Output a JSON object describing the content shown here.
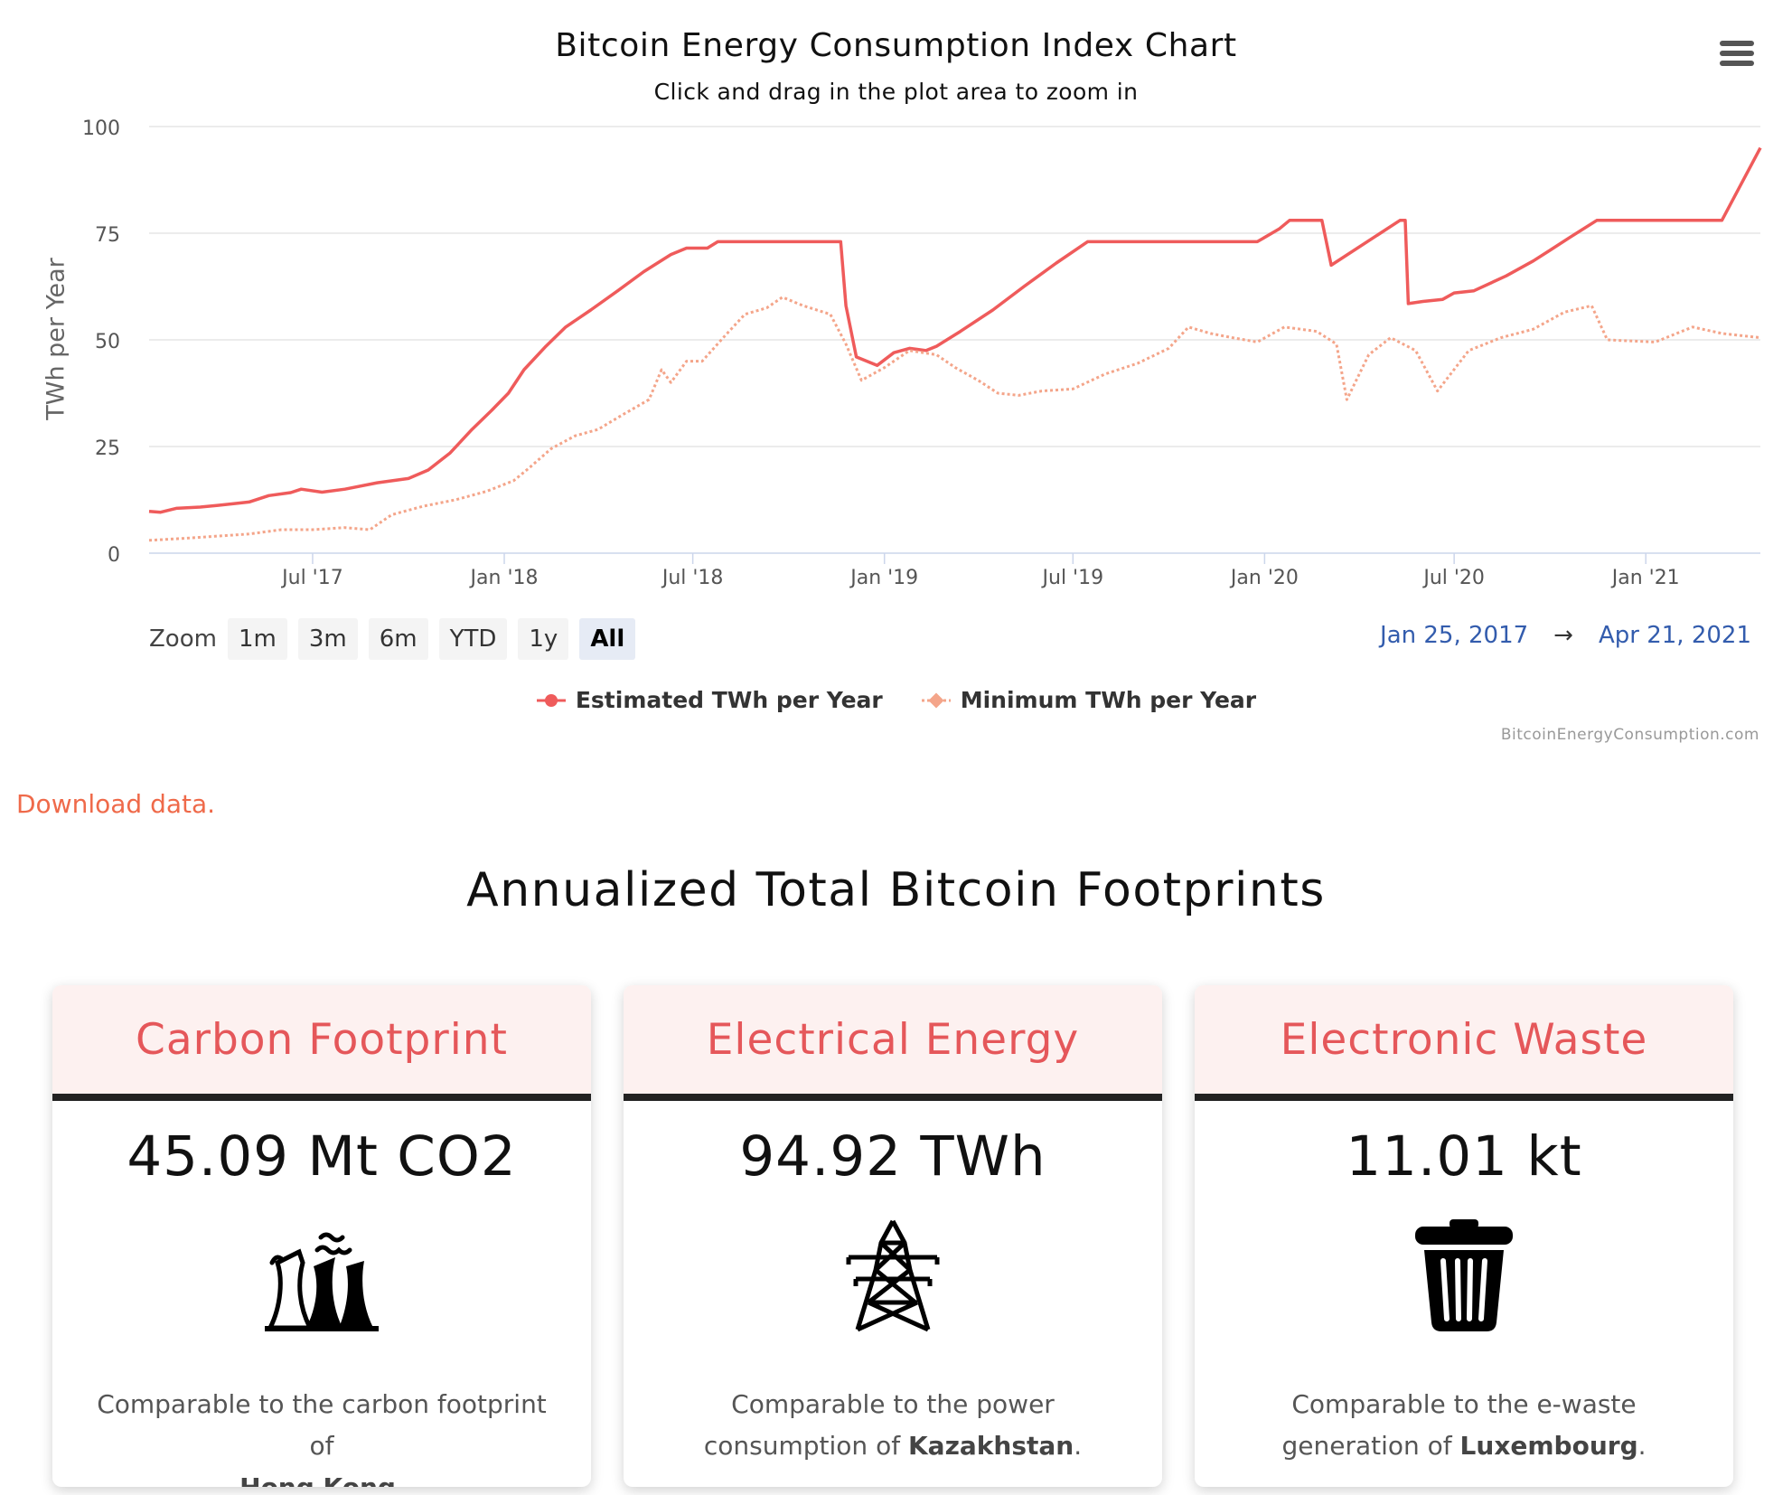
{
  "chart": {
    "title": "Bitcoin Energy Consumption Index Chart",
    "subtitle": "Click and drag in the plot area to zoom in",
    "ylabel": "TWh per Year",
    "menu_icon": "hamburger-menu-icon",
    "zoom": {
      "label": "Zoom",
      "buttons": [
        "1m",
        "3m",
        "6m",
        "YTD",
        "1y",
        "All"
      ],
      "active": "All"
    },
    "range": {
      "from": "Jan 25, 2017",
      "arrow": "→",
      "to": "Apr 21, 2021"
    },
    "credit": "BitcoinEnergyConsumption.com"
  },
  "chart_data": {
    "type": "line",
    "title": "Bitcoin Energy Consumption Index Chart",
    "subtitle": "Click and drag in the plot area to zoom in",
    "xlabel": "",
    "ylabel": "TWh per Year",
    "ylim": [
      0,
      100
    ],
    "yticks": [
      "0",
      "25",
      "50",
      "75",
      "100"
    ],
    "xlim": [
      "2017-01-25",
      "2021-04-21"
    ],
    "xticks": [
      {
        "label": "Jul '17",
        "date": "2017-07-01"
      },
      {
        "label": "Jan '18",
        "date": "2018-01-01"
      },
      {
        "label": "Jul '18",
        "date": "2018-07-01"
      },
      {
        "label": "Jan '19",
        "date": "2019-01-01"
      },
      {
        "label": "Jul '19",
        "date": "2019-07-01"
      },
      {
        "label": "Jan '20",
        "date": "2020-01-01"
      },
      {
        "label": "Jul '20",
        "date": "2020-07-01"
      },
      {
        "label": "Jan '21",
        "date": "2021-01-01"
      }
    ],
    "grid": true,
    "legend_position": "bottom",
    "series": [
      {
        "name": "Estimated TWh per Year",
        "color": "#ef5b5b",
        "style": "solid",
        "points": [
          [
            "2017-01-25",
            9.8
          ],
          [
            "2017-02-05",
            9.6
          ],
          [
            "2017-02-20",
            10.5
          ],
          [
            "2017-03-15",
            10.8
          ],
          [
            "2017-04-01",
            11.2
          ],
          [
            "2017-05-01",
            12.0
          ],
          [
            "2017-05-20",
            13.5
          ],
          [
            "2017-06-10",
            14.2
          ],
          [
            "2017-06-20",
            15.0
          ],
          [
            "2017-07-10",
            14.3
          ],
          [
            "2017-08-01",
            15.0
          ],
          [
            "2017-09-01",
            16.5
          ],
          [
            "2017-10-01",
            17.5
          ],
          [
            "2017-10-20",
            19.5
          ],
          [
            "2017-11-10",
            23.5
          ],
          [
            "2017-12-01",
            29.0
          ],
          [
            "2017-12-20",
            33.5
          ],
          [
            "2018-01-05",
            37.5
          ],
          [
            "2018-01-20",
            43.0
          ],
          [
            "2018-02-10",
            48.5
          ],
          [
            "2018-03-01",
            53.0
          ],
          [
            "2018-03-25",
            57.0
          ],
          [
            "2018-04-20",
            61.5
          ],
          [
            "2018-05-15",
            66.0
          ],
          [
            "2018-06-10",
            70.0
          ],
          [
            "2018-06-25",
            71.5
          ],
          [
            "2018-07-15",
            71.5
          ],
          [
            "2018-07-25",
            73.0
          ],
          [
            "2018-10-10",
            73.0
          ],
          [
            "2018-11-20",
            73.0
          ],
          [
            "2018-11-25",
            58.0
          ],
          [
            "2018-12-05",
            46.0
          ],
          [
            "2018-12-25",
            44.0
          ],
          [
            "2019-01-10",
            47.0
          ],
          [
            "2019-01-25",
            48.0
          ],
          [
            "2019-02-10",
            47.5
          ],
          [
            "2019-02-20",
            48.5
          ],
          [
            "2019-03-15",
            52.0
          ],
          [
            "2019-04-15",
            57.0
          ],
          [
            "2019-05-15",
            62.5
          ],
          [
            "2019-06-15",
            68.0
          ],
          [
            "2019-07-15",
            73.0
          ],
          [
            "2019-09-01",
            73.0
          ],
          [
            "2019-12-25",
            73.0
          ],
          [
            "2020-01-15",
            76.0
          ],
          [
            "2020-01-25",
            78.0
          ],
          [
            "2020-02-25",
            78.0
          ],
          [
            "2020-03-05",
            67.5
          ],
          [
            "2020-05-10",
            78.0
          ],
          [
            "2020-05-15",
            78.0
          ],
          [
            "2020-05-18",
            58.5
          ],
          [
            "2020-06-01",
            59.0
          ],
          [
            "2020-06-20",
            59.5
          ],
          [
            "2020-07-01",
            61.0
          ],
          [
            "2020-07-20",
            61.5
          ],
          [
            "2020-08-20",
            65.0
          ],
          [
            "2020-09-15",
            68.5
          ],
          [
            "2020-10-01",
            71.0
          ],
          [
            "2020-10-20",
            74.0
          ],
          [
            "2020-11-15",
            78.0
          ],
          [
            "2021-03-15",
            78.0
          ],
          [
            "2021-04-21",
            95.0
          ]
        ]
      },
      {
        "name": "Minimum TWh per Year",
        "color": "#f4a58a",
        "style": "dotted",
        "points": [
          [
            "2017-01-25",
            3.0
          ],
          [
            "2017-03-01",
            3.5
          ],
          [
            "2017-04-01",
            4.0
          ],
          [
            "2017-05-01",
            4.5
          ],
          [
            "2017-06-01",
            5.5
          ],
          [
            "2017-07-01",
            5.5
          ],
          [
            "2017-08-01",
            6.0
          ],
          [
            "2017-08-25",
            5.5
          ],
          [
            "2017-09-15",
            9.0
          ],
          [
            "2017-10-15",
            11.0
          ],
          [
            "2017-11-15",
            12.5
          ],
          [
            "2017-12-15",
            14.5
          ],
          [
            "2018-01-10",
            17.0
          ],
          [
            "2018-01-25",
            20.0
          ],
          [
            "2018-02-15",
            24.5
          ],
          [
            "2018-03-10",
            27.5
          ],
          [
            "2018-04-01",
            29.0
          ],
          [
            "2018-04-25",
            32.5
          ],
          [
            "2018-05-20",
            36.0
          ],
          [
            "2018-06-01",
            43.0
          ],
          [
            "2018-06-10",
            40.0
          ],
          [
            "2018-06-25",
            45.0
          ],
          [
            "2018-07-10",
            45.0
          ],
          [
            "2018-08-01",
            51.0
          ],
          [
            "2018-08-20",
            56.0
          ],
          [
            "2018-09-10",
            57.5
          ],
          [
            "2018-09-25",
            60.0
          ],
          [
            "2018-10-15",
            58.0
          ],
          [
            "2018-11-10",
            56.0
          ],
          [
            "2018-11-25",
            49.0
          ],
          [
            "2018-12-10",
            40.5
          ],
          [
            "2019-01-01",
            43.5
          ],
          [
            "2019-01-25",
            47.5
          ],
          [
            "2019-02-20",
            46.5
          ],
          [
            "2019-03-10",
            43.5
          ],
          [
            "2019-04-01",
            40.5
          ],
          [
            "2019-04-20",
            37.5
          ],
          [
            "2019-05-10",
            37.0
          ],
          [
            "2019-06-01",
            38.0
          ],
          [
            "2019-07-01",
            38.5
          ],
          [
            "2019-08-01",
            42.0
          ],
          [
            "2019-09-01",
            44.5
          ],
          [
            "2019-10-01",
            48.0
          ],
          [
            "2019-10-20",
            53.0
          ],
          [
            "2019-11-10",
            51.5
          ],
          [
            "2019-12-01",
            50.5
          ],
          [
            "2019-12-25",
            49.5
          ],
          [
            "2020-01-20",
            53.0
          ],
          [
            "2020-02-20",
            52.0
          ],
          [
            "2020-03-10",
            49.0
          ],
          [
            "2020-03-20",
            36.0
          ],
          [
            "2020-04-10",
            46.5
          ],
          [
            "2020-05-01",
            50.5
          ],
          [
            "2020-05-25",
            47.5
          ],
          [
            "2020-06-15",
            38.0
          ],
          [
            "2020-07-15",
            47.5
          ],
          [
            "2020-08-15",
            50.5
          ],
          [
            "2020-09-15",
            52.5
          ],
          [
            "2020-10-15",
            56.5
          ],
          [
            "2020-11-10",
            58.0
          ],
          [
            "2020-11-25",
            50.0
          ],
          [
            "2021-01-10",
            49.5
          ],
          [
            "2021-02-15",
            53.0
          ],
          [
            "2021-03-15",
            51.5
          ],
          [
            "2021-04-21",
            50.5
          ]
        ]
      }
    ]
  },
  "legend": {
    "items": [
      {
        "label": "Estimated TWh per Year",
        "color": "#ef5b5b"
      },
      {
        "label": "Minimum TWh per Year",
        "color": "#f4a58a"
      }
    ]
  },
  "download": {
    "label": "Download data."
  },
  "footprints": {
    "title": "Annualized Total Bitcoin Footprints",
    "cards": [
      {
        "heading": "Carbon Footprint",
        "value": "45.09 Mt CO2",
        "icon": "power-plant-icon",
        "text_before": "Comparable to the carbon footprint of",
        "highlight": "Hong Kong",
        "text_after": "."
      },
      {
        "heading": "Electrical Energy",
        "value": "94.92 TWh",
        "icon": "power-tower-icon",
        "text_before": "Comparable to the power consumption of",
        "highlight": "Kazakhstan",
        "text_after": "."
      },
      {
        "heading": "Electronic Waste",
        "value": "11.01 kt",
        "icon": "trash-can-icon",
        "text_before": "Comparable to the e-waste generation of",
        "highlight": "Luxembourg",
        "text_after": "."
      }
    ]
  }
}
